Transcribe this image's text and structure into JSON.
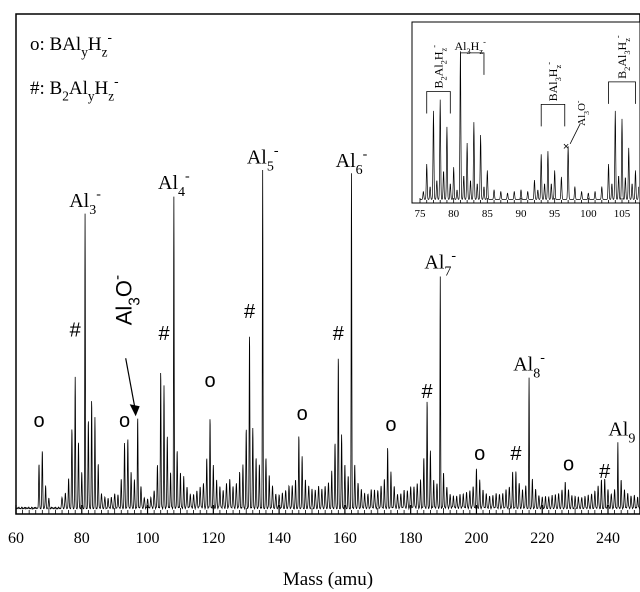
{
  "chart_data": {
    "type": "line",
    "title": "",
    "xlabel": "Mass (amu)",
    "ylabel": "",
    "xlim": [
      60,
      250
    ],
    "ylim": [
      0,
      100
    ],
    "xticks": [
      60,
      80,
      100,
      120,
      140,
      160,
      180,
      200,
      220,
      240
    ],
    "legend": [
      {
        "marker": "o",
        "label": "o: BAl",
        "sub1": "y",
        "mid": "H",
        "sub2": "z",
        "sup": "-"
      },
      {
        "marker": "#",
        "label": "#: B",
        "pre_sub": "2",
        "mid0": "Al",
        "sub1": "y",
        "mid": "H",
        "sub2": "z",
        "sup": "-"
      }
    ],
    "cluster_peaks": [
      {
        "label": "Al",
        "n": "3",
        "sup": "-",
        "x": 81,
        "y": 81
      },
      {
        "label": "Al",
        "n": "4",
        "sup": "-",
        "x": 108,
        "y": 86
      },
      {
        "label": "Al",
        "n": "5",
        "sup": "-",
        "x": 135,
        "y": 93
      },
      {
        "label": "Al",
        "n": "6",
        "sup": "-",
        "x": 162,
        "y": 92
      },
      {
        "label": "Al",
        "n": "7",
        "sup": "-",
        "x": 189,
        "y": 64
      },
      {
        "label": "Al",
        "n": "8",
        "sup": "-",
        "x": 216,
        "y": 36
      },
      {
        "label": "Al",
        "n": "9",
        "sup": "",
        "x": 243,
        "y": 18
      }
    ],
    "annotations": [
      {
        "text": "o",
        "x": 67,
        "y": 22
      },
      {
        "text": "#",
        "x": 78,
        "y": 47
      },
      {
        "text": "o",
        "x": 93,
        "y": 22
      },
      {
        "text": "#",
        "x": 105,
        "y": 46
      },
      {
        "text": "o",
        "x": 119,
        "y": 33
      },
      {
        "text": "#",
        "x": 131,
        "y": 52
      },
      {
        "text": "o",
        "x": 147,
        "y": 24
      },
      {
        "text": "#",
        "x": 158,
        "y": 46
      },
      {
        "text": "o",
        "x": 174,
        "y": 21
      },
      {
        "text": "#",
        "x": 185,
        "y": 30
      },
      {
        "text": "o",
        "x": 201,
        "y": 13
      },
      {
        "text": "#",
        "x": 212,
        "y": 13
      },
      {
        "text": "o",
        "x": 228,
        "y": 10
      },
      {
        "text": "#",
        "x": 239,
        "y": 8
      }
    ],
    "al3o_label": {
      "text": "Al",
      "sub": "3",
      "tail": "O",
      "sup": "-",
      "peak_x": 97,
      "peak_y": 25
    },
    "peaks": [
      [
        67,
        12,
        0.5
      ],
      [
        68,
        16,
        0.5
      ],
      [
        69,
        6,
        0.5
      ],
      [
        70,
        2.5,
        0.6
      ],
      [
        74,
        3,
        0.6
      ],
      [
        75,
        4,
        0.6
      ],
      [
        76,
        8,
        0.5
      ],
      [
        77,
        22,
        0.5
      ],
      [
        78,
        36,
        0.45
      ],
      [
        79,
        18,
        0.5
      ],
      [
        80,
        10,
        0.5
      ],
      [
        81,
        81,
        0.4
      ],
      [
        82,
        24,
        0.5
      ],
      [
        83,
        30,
        0.45
      ],
      [
        84,
        25,
        0.45
      ],
      [
        85,
        12,
        0.5
      ],
      [
        86,
        4,
        0.6
      ],
      [
        87,
        3,
        0.6
      ],
      [
        88,
        2.5,
        0.6
      ],
      [
        89,
        3,
        0.6
      ],
      [
        90,
        4,
        0.6
      ],
      [
        91,
        3.5,
        0.6
      ],
      [
        92,
        8,
        0.5
      ],
      [
        93,
        18,
        0.5
      ],
      [
        94,
        19,
        0.5
      ],
      [
        95,
        10,
        0.5
      ],
      [
        96,
        8,
        0.5
      ],
      [
        97,
        25,
        0.45
      ],
      [
        98,
        6,
        0.6
      ],
      [
        99,
        3,
        0.6
      ],
      [
        100,
        2.5,
        0.6
      ],
      [
        101,
        3,
        0.6
      ],
      [
        102,
        5,
        0.6
      ],
      [
        103,
        12,
        0.5
      ],
      [
        104,
        38,
        0.45
      ],
      [
        105,
        34,
        0.45
      ],
      [
        106,
        20,
        0.5
      ],
      [
        107,
        10,
        0.5
      ],
      [
        108,
        86,
        0.4
      ],
      [
        109,
        16,
        0.5
      ],
      [
        110,
        10,
        0.5
      ],
      [
        111,
        9,
        0.5
      ],
      [
        112,
        6,
        0.6
      ],
      [
        113,
        4,
        0.6
      ],
      [
        114,
        4,
        0.6
      ],
      [
        115,
        5,
        0.6
      ],
      [
        116,
        6,
        0.6
      ],
      [
        117,
        7,
        0.6
      ],
      [
        118,
        14,
        0.5
      ],
      [
        119,
        25,
        0.45
      ],
      [
        120,
        12,
        0.5
      ],
      [
        121,
        8,
        0.5
      ],
      [
        122,
        6,
        0.6
      ],
      [
        123,
        5,
        0.6
      ],
      [
        124,
        7,
        0.6
      ],
      [
        125,
        8,
        0.6
      ],
      [
        126,
        6,
        0.6
      ],
      [
        127,
        7,
        0.6
      ],
      [
        128,
        10,
        0.5
      ],
      [
        129,
        12,
        0.5
      ],
      [
        130,
        22,
        0.5
      ],
      [
        131,
        48,
        0.45
      ],
      [
        132,
        22,
        0.5
      ],
      [
        133,
        14,
        0.5
      ],
      [
        134,
        12,
        0.5
      ],
      [
        135,
        93,
        0.4
      ],
      [
        136,
        14,
        0.5
      ],
      [
        137,
        9,
        0.5
      ],
      [
        138,
        6,
        0.6
      ],
      [
        139,
        4,
        0.6
      ],
      [
        140,
        3.5,
        0.6
      ],
      [
        141,
        4,
        0.6
      ],
      [
        142,
        5,
        0.6
      ],
      [
        143,
        6,
        0.6
      ],
      [
        144,
        6,
        0.6
      ],
      [
        145,
        8,
        0.5
      ],
      [
        146,
        20,
        0.45
      ],
      [
        147,
        14,
        0.5
      ],
      [
        148,
        8,
        0.5
      ],
      [
        149,
        6,
        0.6
      ],
      [
        150,
        5,
        0.6
      ],
      [
        151,
        5,
        0.6
      ],
      [
        152,
        6,
        0.6
      ],
      [
        153,
        5,
        0.6
      ],
      [
        154,
        6,
        0.6
      ],
      [
        155,
        7,
        0.6
      ],
      [
        156,
        10,
        0.5
      ],
      [
        157,
        18,
        0.5
      ],
      [
        158,
        42,
        0.45
      ],
      [
        159,
        20,
        0.5
      ],
      [
        160,
        12,
        0.5
      ],
      [
        161,
        9,
        0.5
      ],
      [
        162,
        92,
        0.4
      ],
      [
        163,
        12,
        0.5
      ],
      [
        164,
        7,
        0.6
      ],
      [
        165,
        5,
        0.6
      ],
      [
        166,
        4,
        0.6
      ],
      [
        167,
        4,
        0.6
      ],
      [
        168,
        5,
        0.6
      ],
      [
        169,
        5,
        0.6
      ],
      [
        170,
        5,
        0.6
      ],
      [
        171,
        6,
        0.6
      ],
      [
        172,
        8,
        0.5
      ],
      [
        173,
        17,
        0.45
      ],
      [
        174,
        10,
        0.5
      ],
      [
        175,
        6,
        0.6
      ],
      [
        176,
        4,
        0.6
      ],
      [
        177,
        4,
        0.6
      ],
      [
        178,
        5,
        0.6
      ],
      [
        179,
        5,
        0.6
      ],
      [
        180,
        6,
        0.6
      ],
      [
        181,
        6,
        0.6
      ],
      [
        182,
        7,
        0.6
      ],
      [
        183,
        8,
        0.5
      ],
      [
        184,
        14,
        0.5
      ],
      [
        185,
        30,
        0.45
      ],
      [
        186,
        16,
        0.5
      ],
      [
        187,
        8,
        0.5
      ],
      [
        188,
        7,
        0.6
      ],
      [
        189,
        64,
        0.4
      ],
      [
        190,
        10,
        0.5
      ],
      [
        191,
        6,
        0.6
      ],
      [
        192,
        4,
        0.6
      ],
      [
        193,
        3.5,
        0.6
      ],
      [
        194,
        3.5,
        0.6
      ],
      [
        195,
        4,
        0.6
      ],
      [
        196,
        4,
        0.6
      ],
      [
        197,
        4.5,
        0.6
      ],
      [
        198,
        5,
        0.6
      ],
      [
        199,
        6,
        0.6
      ],
      [
        200,
        11,
        0.5
      ],
      [
        201,
        8,
        0.5
      ],
      [
        202,
        5,
        0.6
      ],
      [
        203,
        4,
        0.6
      ],
      [
        204,
        3.5,
        0.6
      ],
      [
        205,
        3.5,
        0.6
      ],
      [
        206,
        4,
        0.6
      ],
      [
        207,
        4,
        0.6
      ],
      [
        208,
        4,
        0.6
      ],
      [
        209,
        5,
        0.6
      ],
      [
        210,
        6,
        0.6
      ],
      [
        211,
        10,
        0.5
      ],
      [
        212,
        10,
        0.5
      ],
      [
        213,
        7,
        0.6
      ],
      [
        214,
        5,
        0.6
      ],
      [
        215,
        6,
        0.6
      ],
      [
        216,
        36,
        0.4
      ],
      [
        217,
        8,
        0.5
      ],
      [
        218,
        5,
        0.6
      ],
      [
        219,
        3.5,
        0.6
      ],
      [
        220,
        3,
        0.6
      ],
      [
        221,
        3,
        0.6
      ],
      [
        222,
        3,
        0.6
      ],
      [
        223,
        3.5,
        0.6
      ],
      [
        224,
        3.5,
        0.6
      ],
      [
        225,
        4,
        0.6
      ],
      [
        226,
        5,
        0.6
      ],
      [
        227,
        7,
        0.5
      ],
      [
        228,
        5,
        0.6
      ],
      [
        229,
        3.5,
        0.6
      ],
      [
        230,
        3,
        0.6
      ],
      [
        231,
        3,
        0.6
      ],
      [
        232,
        3,
        0.6
      ],
      [
        233,
        3,
        0.6
      ],
      [
        234,
        3.5,
        0.6
      ],
      [
        235,
        4,
        0.6
      ],
      [
        236,
        4.5,
        0.6
      ],
      [
        237,
        6,
        0.6
      ],
      [
        238,
        8,
        0.5
      ],
      [
        239,
        8,
        0.5
      ],
      [
        240,
        5,
        0.6
      ],
      [
        241,
        4,
        0.6
      ],
      [
        242,
        5,
        0.6
      ],
      [
        243,
        18,
        0.4
      ],
      [
        244,
        8,
        0.5
      ],
      [
        245,
        5,
        0.6
      ],
      [
        246,
        4,
        0.6
      ],
      [
        247,
        3.5,
        0.6
      ],
      [
        248,
        3.5,
        0.6
      ],
      [
        249,
        3,
        0.6
      ]
    ],
    "inset": {
      "xlim": [
        75,
        108
      ],
      "xticks": [
        75,
        80,
        85,
        90,
        95,
        100,
        105
      ],
      "group_labels": [
        {
          "parts": [
            "B",
            "2",
            "Al",
            "2",
            "H",
            "z",
            "-"
          ],
          "x_start": 76,
          "x_end": 79.5,
          "y": 0.68
        },
        {
          "parts": [
            "Al",
            "3",
            "H",
            "z",
            "-"
          ],
          "x_start": 81,
          "x_end": 84.5,
          "y": 0.92
        },
        {
          "parts": [
            "BAl",
            "3",
            "H",
            "z",
            "-"
          ],
          "x_start": 93,
          "x_end": 96.5,
          "y": 0.6
        },
        {
          "parts": [
            "B",
            "2",
            "Al",
            "3",
            "H",
            "z",
            "-"
          ],
          "x_start": 103,
          "x_end": 107,
          "y": 0.74
        }
      ],
      "al3o": {
        "text": "Al",
        "sub": "3",
        "tail": "O",
        "sup": "-",
        "x": 97,
        "y": 0.33
      },
      "peaks": [
        [
          75.5,
          0.05
        ],
        [
          76,
          0.22
        ],
        [
          76.5,
          0.08
        ],
        [
          77,
          0.55
        ],
        [
          77.5,
          0.12
        ],
        [
          78,
          0.62
        ],
        [
          78.5,
          0.18
        ],
        [
          79,
          0.45
        ],
        [
          79.5,
          0.1
        ],
        [
          80,
          0.2
        ],
        [
          80.5,
          0.06
        ],
        [
          81,
          0.92
        ],
        [
          81.5,
          0.15
        ],
        [
          82,
          0.35
        ],
        [
          82.5,
          0.12
        ],
        [
          83,
          0.48
        ],
        [
          83.5,
          0.1
        ],
        [
          84,
          0.4
        ],
        [
          84.5,
          0.08
        ],
        [
          85,
          0.18
        ],
        [
          86,
          0.06
        ],
        [
          87,
          0.05
        ],
        [
          88,
          0.04
        ],
        [
          89,
          0.05
        ],
        [
          90,
          0.06
        ],
        [
          91,
          0.05
        ],
        [
          92,
          0.12
        ],
        [
          92.5,
          0.06
        ],
        [
          93,
          0.28
        ],
        [
          93.5,
          0.1
        ],
        [
          94,
          0.3
        ],
        [
          94.5,
          0.1
        ],
        [
          95,
          0.18
        ],
        [
          96,
          0.14
        ],
        [
          97,
          0.33
        ],
        [
          98,
          0.08
        ],
        [
          99,
          0.05
        ],
        [
          100,
          0.04
        ],
        [
          101,
          0.05
        ],
        [
          102,
          0.08
        ],
        [
          103,
          0.22
        ],
        [
          103.5,
          0.1
        ],
        [
          104,
          0.55
        ],
        [
          104.5,
          0.15
        ],
        [
          105,
          0.5
        ],
        [
          105.5,
          0.14
        ],
        [
          106,
          0.32
        ],
        [
          106.5,
          0.1
        ],
        [
          107,
          0.18
        ],
        [
          107.5,
          0.08
        ]
      ]
    }
  }
}
